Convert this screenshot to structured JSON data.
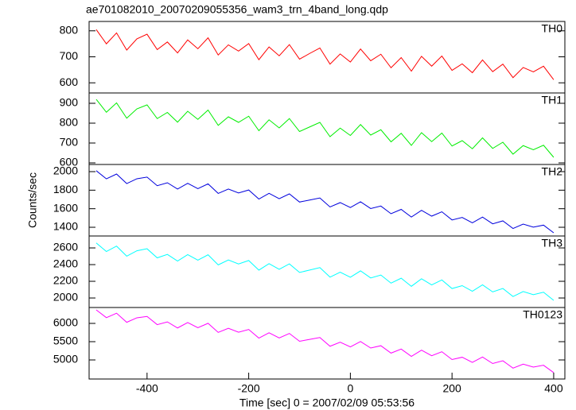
{
  "chart_data": [
    {
      "type": "line",
      "title": "ae701082010_20070209055356_wam3_trn_4band_long.qdp",
      "x": [
        -500,
        -480,
        -460,
        -440,
        -420,
        -400,
        -380,
        -360,
        -340,
        -320,
        -300,
        -280,
        -260,
        -240,
        -220,
        -200,
        -180,
        -160,
        -140,
        -120,
        -100,
        -80,
        -60,
        -40,
        -20,
        0,
        20,
        40,
        60,
        80,
        100,
        120,
        140,
        160,
        180,
        200,
        220,
        240,
        260,
        280,
        300,
        320,
        340,
        360,
        380,
        400
      ],
      "series": [
        {
          "name": "TH0",
          "color": "#ff0000",
          "values": [
            805,
            750,
            792,
            726,
            769,
            787,
            728,
            757,
            715,
            765,
            731,
            773,
            707,
            746,
            722,
            751,
            689,
            738,
            704,
            747,
            691,
            713,
            734,
            672,
            711,
            680,
            730,
            685,
            710,
            658,
            697,
            645,
            702,
            664,
            703,
            648,
            673,
            639,
            688,
            643,
            672,
            620,
            659,
            642,
            664,
            612
          ]
        }
      ],
      "xlim": [
        -514,
        422
      ],
      "ylim": [
        561,
        836
      ],
      "yticks": [
        600,
        700,
        800
      ]
    },
    {
      "type": "line",
      "x": [
        -500,
        -480,
        -460,
        -440,
        -420,
        -400,
        -380,
        -360,
        -340,
        -320,
        -300,
        -280,
        -260,
        -240,
        -220,
        -200,
        -180,
        -160,
        -140,
        -120,
        -100,
        -80,
        -60,
        -40,
        -20,
        0,
        20,
        40,
        60,
        80,
        100,
        120,
        140,
        160,
        180,
        200,
        220,
        240,
        260,
        280,
        300,
        320,
        340,
        360,
        380,
        400
      ],
      "series": [
        {
          "name": "TH1",
          "color": "#00ee00",
          "values": [
            920,
            855,
            902,
            825,
            872,
            892,
            823,
            854,
            805,
            860,
            819,
            866,
            789,
            832,
            804,
            835,
            762,
            817,
            776,
            823,
            758,
            781,
            804,
            732,
            775,
            738,
            793,
            740,
            767,
            706,
            749,
            688,
            752,
            707,
            750,
            685,
            712,
            671,
            726,
            673,
            704,
            644,
            687,
            666,
            689,
            628
          ]
        }
      ],
      "xlim": [
        -514,
        422
      ],
      "ylim": [
        592,
        952
      ],
      "yticks": [
        600,
        700,
        800,
        900
      ]
    },
    {
      "type": "line",
      "ylabel": "Counts/sec",
      "x": [
        -500,
        -480,
        -460,
        -440,
        -420,
        -400,
        -380,
        -360,
        -340,
        -320,
        -300,
        -280,
        -260,
        -240,
        -220,
        -200,
        -180,
        -160,
        -140,
        -120,
        -100,
        -80,
        -60,
        -40,
        -20,
        0,
        20,
        40,
        60,
        80,
        100,
        120,
        140,
        160,
        180,
        200,
        220,
        240,
        260,
        280,
        300,
        320,
        340,
        360,
        380,
        400
      ],
      "series": [
        {
          "name": "TH2",
          "color": "#0000dd",
          "values": [
            2010,
            1922,
            1974,
            1871,
            1923,
            1941,
            1848,
            1880,
            1812,
            1874,
            1816,
            1868,
            1765,
            1812,
            1770,
            1802,
            1704,
            1766,
            1708,
            1760,
            1672,
            1694,
            1716,
            1619,
            1666,
            1613,
            1675,
            1602,
            1629,
            1546,
            1593,
            1510,
            1583,
            1520,
            1567,
            1479,
            1506,
            1448,
            1510,
            1437,
            1469,
            1387,
            1434,
            1401,
            1423,
            1340
          ]
        }
      ],
      "xlim": [
        -514,
        422
      ],
      "ylim": [
        1306,
        2077
      ],
      "yticks": [
        1400,
        1600,
        1800,
        2000
      ]
    },
    {
      "type": "line",
      "x": [
        -500,
        -480,
        -460,
        -440,
        -420,
        -400,
        -380,
        -360,
        -340,
        -320,
        -300,
        -280,
        -260,
        -240,
        -220,
        -200,
        -180,
        -160,
        -140,
        -120,
        -100,
        -80,
        -60,
        -40,
        -20,
        0,
        20,
        40,
        60,
        80,
        100,
        120,
        140,
        160,
        180,
        200,
        220,
        240,
        260,
        280,
        300,
        320,
        340,
        360,
        380,
        400
      ],
      "series": [
        {
          "name": "TH3",
          "color": "#00ffff",
          "values": [
            2660,
            2557,
            2622,
            2501,
            2566,
            2590,
            2481,
            2522,
            2443,
            2520,
            2453,
            2518,
            2397,
            2456,
            2408,
            2449,
            2334,
            2411,
            2344,
            2409,
            2306,
            2335,
            2364,
            2250,
            2309,
            2248,
            2325,
            2240,
            2275,
            2178,
            2237,
            2140,
            2230,
            2157,
            2216,
            2113,
            2148,
            2081,
            2158,
            2073,
            2114,
            2018,
            2077,
            2040,
            2069,
            1972
          ]
        }
      ],
      "xlim": [
        -514,
        422
      ],
      "ylim": [
        1886,
        2743
      ],
      "yticks": [
        2000,
        2200,
        2400,
        2600
      ]
    },
    {
      "type": "line",
      "xlabel": "Time [sec] 0 = 2007/02/09 05:53:56",
      "x": [
        -500,
        -480,
        -460,
        -440,
        -420,
        -400,
        -380,
        -360,
        -340,
        -320,
        -300,
        -280,
        -260,
        -240,
        -220,
        -200,
        -180,
        -160,
        -140,
        -120,
        -100,
        -80,
        -60,
        -40,
        -20,
        0,
        20,
        40,
        60,
        80,
        100,
        120,
        140,
        160,
        180,
        200,
        220,
        240,
        260,
        280,
        300,
        320,
        340,
        360,
        380,
        400
      ],
      "series": [
        {
          "name": "TH0123",
          "color": "#ff00ff",
          "values": [
            6370,
            6157,
            6279,
            6030,
            6153,
            6191,
            5966,
            6041,
            5875,
            6022,
            5881,
            6003,
            5754,
            5865,
            5759,
            5834,
            5597,
            5743,
            5602,
            5725,
            5511,
            5562,
            5613,
            5375,
            5486,
            5357,
            5503,
            5326,
            5389,
            5187,
            5298,
            5097,
            5267,
            5114,
            5225,
            5011,
            5074,
            4933,
            5079,
            4902,
            4977,
            4775,
            4886,
            4805,
            4855,
            4654
          ]
        }
      ],
      "xlim": [
        -514,
        422
      ],
      "ylim": [
        4478,
        6435
      ],
      "yticks": [
        5000,
        5500,
        6000
      ],
      "xticks": [
        -400,
        -200,
        0,
        200,
        400
      ]
    }
  ]
}
